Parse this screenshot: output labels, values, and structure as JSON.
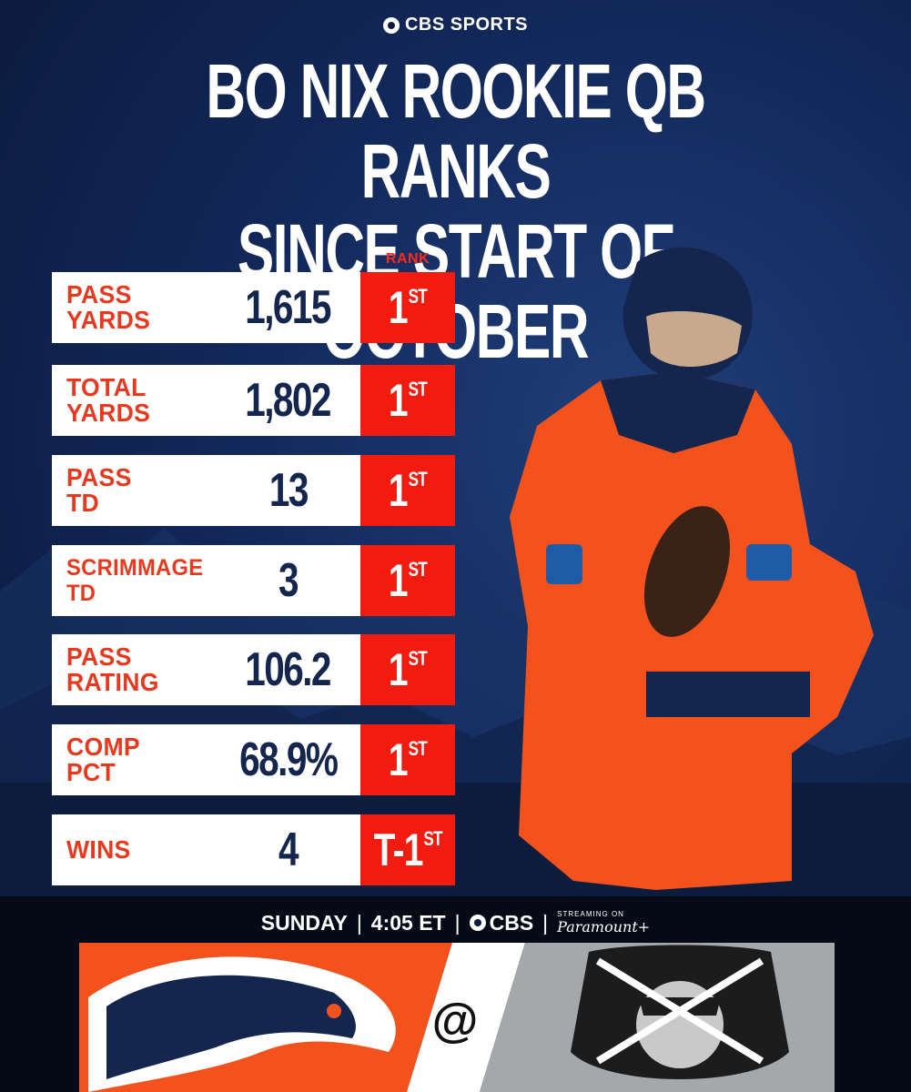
{
  "brand": {
    "name": "CBS SPORTS"
  },
  "title": {
    "line1": "BO NIX ROOKIE QB RANKS",
    "line2": "SINCE START OF OCTOBER"
  },
  "rank_header": "RANK",
  "stats": [
    {
      "label": "PASS\nYARDS",
      "value": "1,615",
      "rank": "1",
      "suffix": "ST"
    },
    {
      "label": "TOTAL\nYARDS",
      "value": "1,802",
      "rank": "1",
      "suffix": "ST"
    },
    {
      "label": "PASS\nTD",
      "value": "13",
      "rank": "1",
      "suffix": "ST"
    },
    {
      "label": "SCRIMMAGE\nTD",
      "value": "3",
      "rank": "1",
      "suffix": "ST"
    },
    {
      "label": "PASS\nRATING",
      "value": "106.2",
      "rank": "1",
      "suffix": "ST"
    },
    {
      "label": "COMP\nPCT",
      "value": "68.9%",
      "rank": "1",
      "suffix": "ST"
    },
    {
      "label": "WINS",
      "value": "4",
      "rank": "T-1",
      "suffix": "ST"
    }
  ],
  "broadcast": {
    "day": "SUNDAY",
    "time": "4:05 ET",
    "network": "CBS",
    "streaming_note": "STREAMING ON",
    "streaming": "Paramount+"
  },
  "matchup": {
    "separator": "@",
    "home_logo_icon": "broncos-logo-icon",
    "away_logo_icon": "raiders-logo-icon"
  },
  "colors": {
    "accent_red": "#f21b0f",
    "label_orange": "#e8391f",
    "navy": "#14264d",
    "broncos_orange": "#f3521d"
  }
}
